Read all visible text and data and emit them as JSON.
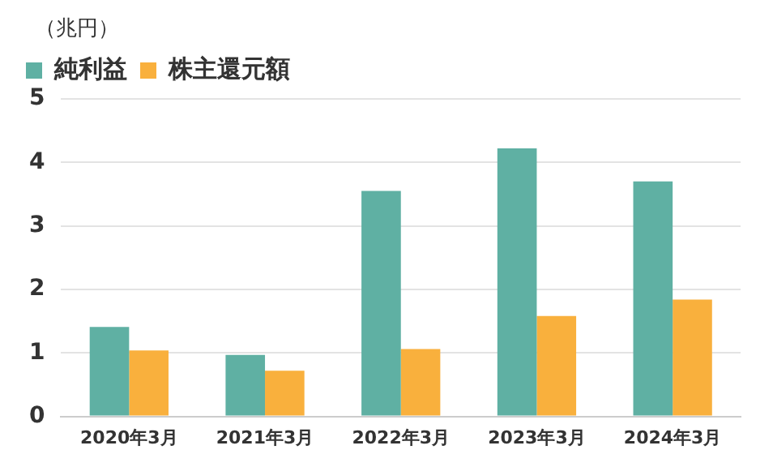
{
  "chart_data": {
    "type": "bar",
    "ylabel": "（兆円）",
    "categories": [
      "2020年3月",
      "2021年3月",
      "2022年3月",
      "2023年3月",
      "2024年3月"
    ],
    "series": [
      {
        "name": "純利益",
        "color": "#5fb0a3",
        "values": [
          1.41,
          0.97,
          3.55,
          4.22,
          3.7
        ]
      },
      {
        "name": "株主還元額",
        "color": "#f9b03d",
        "values": [
          1.04,
          0.72,
          1.06,
          1.58,
          1.84
        ]
      }
    ],
    "ylim": [
      0,
      5
    ],
    "yticks": [
      0,
      1,
      2,
      3,
      4,
      5
    ],
    "grid": "y",
    "legend": "top left"
  }
}
